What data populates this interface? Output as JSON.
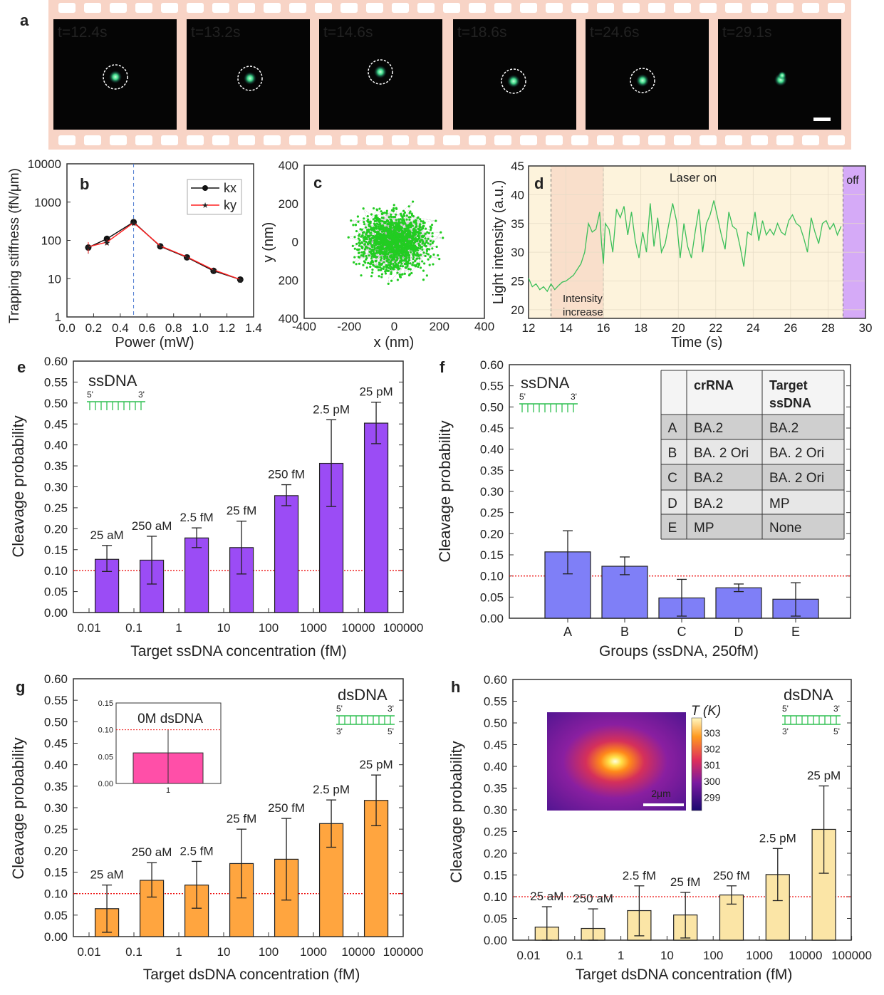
{
  "panel_a": {
    "label": "a",
    "frames": [
      {
        "time": "t=12.4s",
        "tracked": true
      },
      {
        "time": "t=13.2s",
        "tracked": true
      },
      {
        "time": "t=14.6s",
        "tracked": true
      },
      {
        "time": "t=18.6s",
        "tracked": true
      },
      {
        "time": "t=24.6s",
        "tracked": true
      },
      {
        "time": "t=29.1s",
        "tracked": false
      }
    ],
    "colors": {
      "film": "#f8d4c6",
      "frame": "#050505",
      "particle": "#3fd98a"
    }
  },
  "chart_data": [
    {
      "id": "b",
      "label": "b",
      "type": "line",
      "xlabel": "Power (mW)",
      "ylabel": "Trapping stiffness (fN/μm)",
      "xlim": [
        0,
        1.4
      ],
      "xticks": [
        "0.0",
        "0.2",
        "0.4",
        "0.6",
        "0.8",
        "1.0",
        "1.2",
        "1.4"
      ],
      "yscale": "log",
      "ylim": [
        1,
        10000
      ],
      "yticks": [
        "1",
        "10",
        "100",
        "1000",
        "10000"
      ],
      "x": [
        0.16,
        0.3,
        0.5,
        0.7,
        0.9,
        1.1,
        1.3
      ],
      "series": [
        {
          "name": "kx",
          "values": [
            65,
            110,
            300,
            70,
            36,
            16,
            9.5
          ],
          "err": [
            20,
            10,
            20,
            6,
            3,
            1.5,
            0.8
          ],
          "color": "#111111"
        },
        {
          "name": "ky",
          "values": [
            68,
            90,
            290,
            72,
            37,
            17,
            9.5
          ],
          "err": [
            22,
            15,
            20,
            6,
            3,
            1.5,
            0.8
          ],
          "color": "#ff2020"
        }
      ],
      "vline_x": 0.5,
      "legend": "top-right"
    },
    {
      "id": "c",
      "label": "c",
      "type": "scatter",
      "xlabel": "x (nm)",
      "ylabel": "y (nm)",
      "xlim": [
        -400,
        400
      ],
      "ylim": [
        -400,
        400
      ],
      "xticks": [
        "-400",
        "-200",
        "0",
        "200",
        "400"
      ],
      "yticks": [
        "400",
        "200",
        "0",
        "200",
        "400"
      ],
      "cloud": {
        "center_x": 0,
        "center_y": 0,
        "spread_nm": 75,
        "max_radius_nm": 290
      },
      "color": "#22cc22"
    },
    {
      "id": "d",
      "label": "d",
      "type": "line",
      "xlabel": "Time (s)",
      "ylabel": "Light intensity (a.u.)",
      "xlim": [
        12,
        30
      ],
      "ylim": [
        18.5,
        45
      ],
      "xticks": [
        "12",
        "14",
        "16",
        "18",
        "20",
        "22",
        "24",
        "26",
        "28",
        "30"
      ],
      "yticks": [
        "20",
        "25",
        "30",
        "35",
        "40",
        "45"
      ],
      "regions": [
        {
          "from": 13.2,
          "to": 16.0,
          "text": "Intensity increase",
          "color": "#f9dfcb"
        },
        {
          "from": 12.0,
          "to": 28.8,
          "text": "Laser on",
          "color": "#fdf3dc"
        },
        {
          "from": 28.8,
          "to": 30.0,
          "text": "off",
          "color": "#d5aaf7"
        }
      ],
      "color": "#3cbf5a",
      "x": [
        12.0,
        12.2,
        12.4,
        12.6,
        12.8,
        13.0,
        13.2,
        13.4,
        13.6,
        13.8,
        14.0,
        14.2,
        14.4,
        14.6,
        14.8,
        15.0,
        15.2,
        15.4,
        15.6,
        15.8,
        15.9,
        16.0,
        16.1,
        16.3,
        16.5,
        16.7,
        16.9,
        17.1,
        17.3,
        17.5,
        17.7,
        17.9,
        18.1,
        18.3,
        18.5,
        18.7,
        18.9,
        19.1,
        19.3,
        19.5,
        19.7,
        19.9,
        20.1,
        20.3,
        20.5,
        20.7,
        20.9,
        21.1,
        21.3,
        21.5,
        21.7,
        21.9,
        22.1,
        22.3,
        22.5,
        22.7,
        22.9,
        23.1,
        23.3,
        23.5,
        23.7,
        23.9,
        24.1,
        24.3,
        24.5,
        24.7,
        24.9,
        25.1,
        25.3,
        25.5,
        25.7,
        25.9,
        26.1,
        26.3,
        26.5,
        26.7,
        26.9,
        27.1,
        27.3,
        27.5,
        27.7,
        27.9,
        28.1,
        28.3,
        28.5,
        28.7
      ],
      "y": [
        25.5,
        24,
        24.5,
        23.5,
        24,
        23.2,
        24.5,
        23.5,
        24.2,
        24.8,
        25,
        25.5,
        26,
        27,
        28,
        30,
        35,
        33.5,
        34,
        37,
        31.5,
        28,
        35,
        34,
        30,
        37.5,
        36,
        38,
        33,
        37,
        32,
        29,
        33.5,
        30,
        38.5,
        31,
        36,
        30,
        31.5,
        35,
        38.5,
        35.5,
        29,
        35,
        31,
        29,
        33.5,
        37.5,
        30,
        35,
        36.5,
        39,
        36,
        33,
        30.5,
        37,
        34.5,
        34,
        31,
        27.5,
        33.5,
        33,
        37,
        32,
        35.5,
        33,
        34,
        33,
        35,
        33.5,
        33,
        35.5,
        36.5,
        35,
        34.5,
        32.5,
        30,
        36,
        33.5,
        31.5,
        35,
        35.5,
        34,
        35,
        33,
        34.5
      ]
    },
    {
      "id": "e",
      "label": "e",
      "type": "bar",
      "tag": "ssDNA",
      "strand_5": "5'",
      "strand_3": "3'",
      "xlabel": "Target ssDNA concentration (fM)",
      "ylabel": "Cleavage probability",
      "xscale": "log",
      "xticks": [
        "0.01",
        "0.1",
        "1",
        "10",
        "100",
        "1000",
        "10000",
        "100000"
      ],
      "ylim": [
        0,
        0.6
      ],
      "ytick_step": 0.05,
      "x_fM": [
        0.025,
        0.25,
        2.5,
        25,
        250,
        2500,
        25000
      ],
      "bar_labels": [
        "25 aM",
        "250 aM",
        "2.5 fM",
        "25 fM",
        "250 fM",
        "2.5 pM",
        "25 pM"
      ],
      "values": [
        0.127,
        0.125,
        0.178,
        0.155,
        0.279,
        0.356,
        0.452
      ],
      "err_low": [
        0.098,
        0.068,
        0.155,
        0.092,
        0.255,
        0.253,
        0.403
      ],
      "err_high": [
        0.16,
        0.182,
        0.202,
        0.218,
        0.305,
        0.46,
        0.502
      ],
      "threshold": 0.1,
      "color": "#9b4cf5"
    },
    {
      "id": "f",
      "label": "f",
      "type": "bar",
      "tag": "ssDNA",
      "strand_5": "5'",
      "strand_3": "3'",
      "xlabel": "Groups (ssDNA, 250fM)",
      "ylabel": "Cleavage probability",
      "ylim": [
        0,
        0.6
      ],
      "ytick_step": 0.05,
      "categories": [
        "A",
        "B",
        "C",
        "D",
        "E"
      ],
      "values": [
        0.157,
        0.123,
        0.048,
        0.072,
        0.045
      ],
      "err_low": [
        0.105,
        0.103,
        0.005,
        0.063,
        0.005
      ],
      "err_high": [
        0.207,
        0.145,
        0.092,
        0.081,
        0.084
      ],
      "threshold": 0.1,
      "color": "#7f7ff7",
      "table": {
        "headers": [
          "",
          "crRNA",
          "Target ssDNA"
        ],
        "rows": [
          [
            "A",
            "BA.2",
            "BA.2"
          ],
          [
            "B",
            "BA. 2 Ori",
            "BA. 2 Ori"
          ],
          [
            "C",
            "BA.2",
            "BA. 2 Ori"
          ],
          [
            "D",
            "BA.2",
            "MP"
          ],
          [
            "E",
            "MP",
            "None"
          ]
        ]
      }
    },
    {
      "id": "g",
      "label": "g",
      "type": "bar",
      "tag": "dsDNA",
      "strand_5": "5'",
      "strand_3": "3'",
      "xlabel": "Target dsDNA concentration (fM)",
      "ylabel": "Cleavage probability",
      "xscale": "log",
      "xticks": [
        "0.01",
        "0.1",
        "1",
        "10",
        "100",
        "1000",
        "10000",
        "100000"
      ],
      "ylim": [
        0,
        0.6
      ],
      "ytick_step": 0.05,
      "x_fM": [
        0.025,
        0.25,
        2.5,
        25,
        250,
        2500,
        25000
      ],
      "bar_labels": [
        "25 aM",
        "250 aM",
        "2.5 fM",
        "25 fM",
        "250 fM",
        "2.5 pM",
        "25 pM"
      ],
      "values": [
        0.065,
        0.131,
        0.12,
        0.17,
        0.18,
        0.263,
        0.317
      ],
      "err_low": [
        0.01,
        0.092,
        0.066,
        0.09,
        0.085,
        0.208,
        0.258
      ],
      "err_high": [
        0.12,
        0.172,
        0.175,
        0.25,
        0.275,
        0.318,
        0.376
      ],
      "threshold": 0.1,
      "color": "#ffa53f",
      "inset": {
        "title": "0M dsDNA",
        "ylim": [
          0,
          0.15
        ],
        "yticks": [
          "0.00",
          "0.05",
          "0.10",
          "0.15"
        ],
        "xtick": "1",
        "value": 0.057,
        "err_low": 0.0,
        "err_high": 0.1,
        "threshold": 0.1,
        "color": "#ff4fa8"
      }
    },
    {
      "id": "h",
      "label": "h",
      "type": "bar",
      "tag": "dsDNA",
      "strand_5": "5'",
      "strand_3": "3'",
      "xlabel": "Target dsDNA concentration (fM)",
      "ylabel": "Cleavage probability",
      "xscale": "log",
      "xticks": [
        "0.01",
        "0.1",
        "1",
        "10",
        "100",
        "1000",
        "10000",
        "100000"
      ],
      "ylim": [
        0,
        0.6
      ],
      "ytick_step": 0.05,
      "x_fM": [
        0.025,
        0.25,
        2.5,
        25,
        250,
        2500,
        25000
      ],
      "bar_labels": [
        "25 aM",
        "250 aM",
        "2.5 fM",
        "25 fM",
        "250 fM",
        "2.5 pM",
        "25 pM"
      ],
      "values": [
        0.03,
        0.027,
        0.068,
        0.058,
        0.104,
        0.151,
        0.255
      ],
      "err_low": [
        0.0,
        0.0,
        0.01,
        0.005,
        0.083,
        0.091,
        0.154
      ],
      "err_high": [
        0.077,
        0.072,
        0.125,
        0.11,
        0.125,
        0.211,
        0.355
      ],
      "threshold": 0.1,
      "color": "#fbe5a6",
      "thermal_inset": {
        "scale_bar": "2μm",
        "colorbar_title": "T (K)",
        "colorbar_ticks": [
          "303",
          "302",
          "301",
          "300",
          "299"
        ]
      }
    }
  ]
}
